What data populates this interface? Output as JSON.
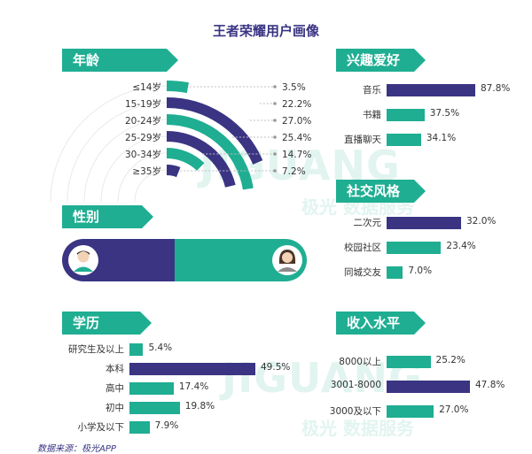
{
  "title": "王者荣耀用户画像",
  "source": "数据来源：极光APP",
  "watermark": {
    "latin": "JIGUANG",
    "cn": "极光 数据服务"
  },
  "colors": {
    "teal": "#1fae92",
    "navy": "#3a3483",
    "line": "#bfbfbf"
  },
  "chart_data": [
    {
      "id": "age",
      "type": "radial-bar",
      "title": "年龄",
      "categories": [
        "≤14岁",
        "15-19岁",
        "20-24岁",
        "25-29岁",
        "30-34岁",
        "≥35岁"
      ],
      "values": [
        3.5,
        22.2,
        27.0,
        25.4,
        14.7,
        7.2
      ],
      "labels": [
        "3.5%",
        "22.2%",
        "27.0%",
        "25.4%",
        "14.7%",
        "7.2%"
      ]
    },
    {
      "id": "gender",
      "type": "bar",
      "title": "性别",
      "categories": [
        "男",
        "女"
      ],
      "values": [
        45.9,
        54.1
      ],
      "labels": [
        "45.9%",
        "54.1%"
      ]
    },
    {
      "id": "interest",
      "type": "bar",
      "title": "兴趣爱好",
      "categories": [
        "音乐",
        "书籍",
        "直播聊天"
      ],
      "values": [
        87.8,
        37.5,
        34.1
      ],
      "labels": [
        "87.8%",
        "37.5%",
        "34.1%"
      ]
    },
    {
      "id": "social",
      "type": "bar",
      "title": "社交风格",
      "categories": [
        "二次元",
        "校园社区",
        "同城交友"
      ],
      "values": [
        32.0,
        23.4,
        7.0
      ],
      "labels": [
        "32.0%",
        "23.4%",
        "7.0%"
      ]
    },
    {
      "id": "education",
      "type": "bar",
      "title": "学历",
      "categories": [
        "研究生及以上",
        "本科",
        "高中",
        "初中",
        "小学及以下"
      ],
      "values": [
        5.4,
        49.5,
        17.4,
        19.8,
        7.9
      ],
      "labels": [
        "5.4%",
        "49.5%",
        "17.4%",
        "19.8%",
        "7.9%"
      ]
    },
    {
      "id": "income",
      "type": "bar",
      "title": "收入水平",
      "categories": [
        "8000以上",
        "3001-8000",
        "3000及以下"
      ],
      "values": [
        25.2,
        47.8,
        27.0
      ],
      "labels": [
        "25.2%",
        "47.8%",
        "27.0%"
      ]
    }
  ]
}
